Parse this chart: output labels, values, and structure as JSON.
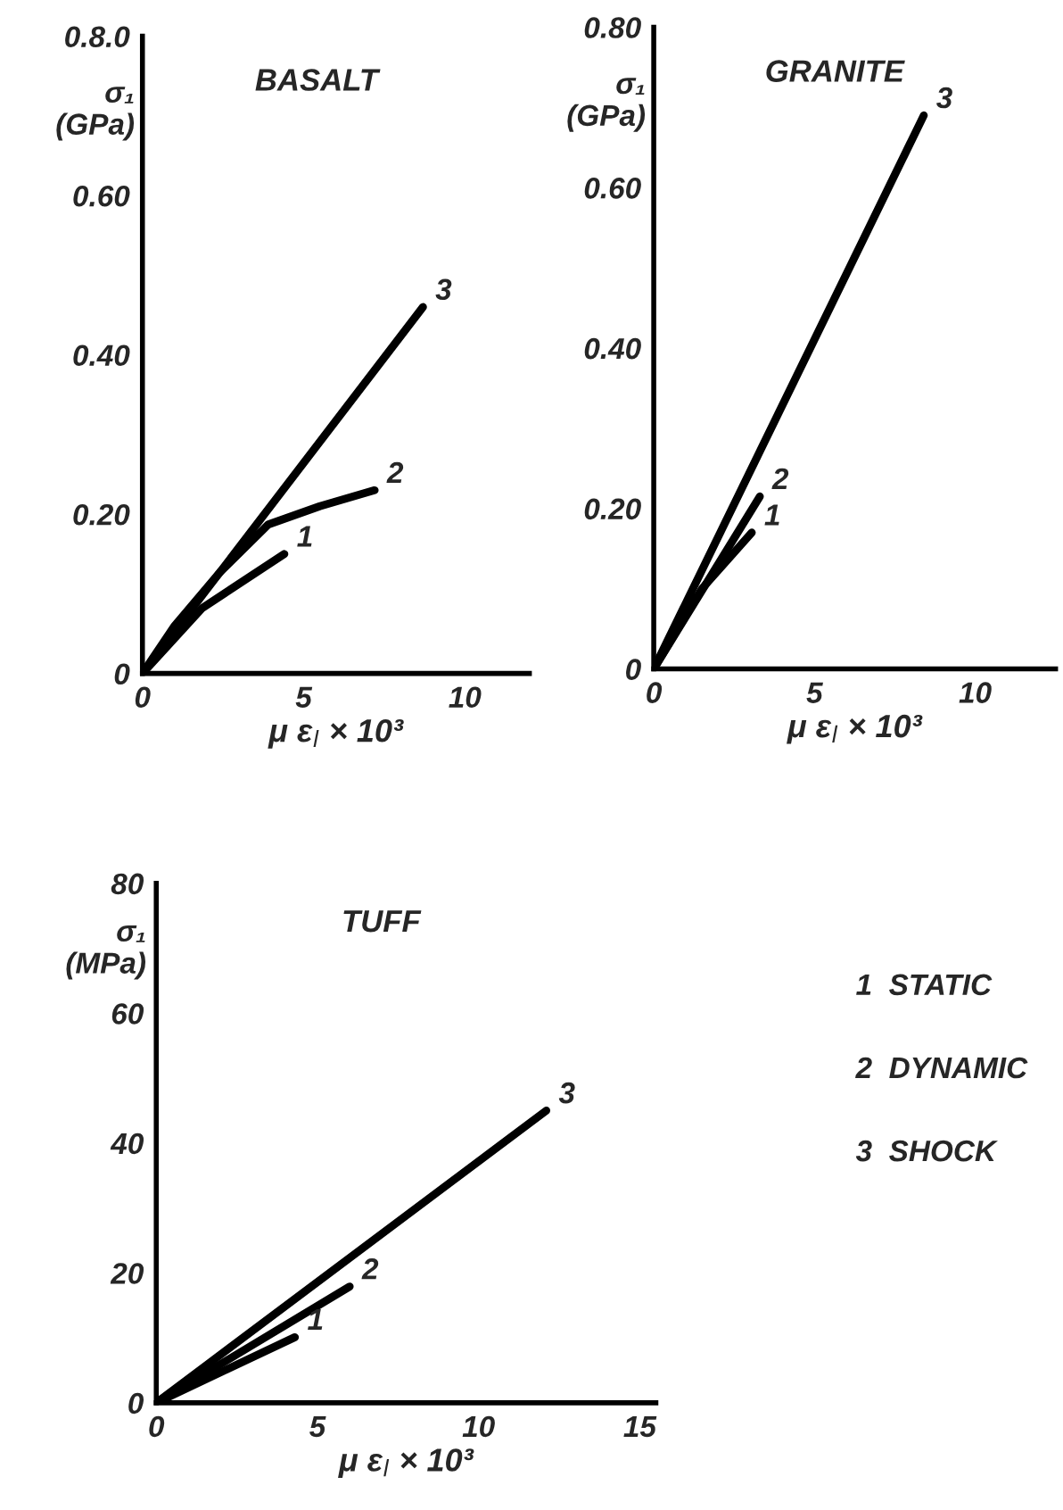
{
  "chart_data": [
    {
      "type": "line",
      "title": "BASALT",
      "xlabel": "μ ε$_{l}$ × 10³",
      "ylabel": "σ₁\n(GPa)",
      "xlim": [
        0,
        12
      ],
      "ylim": [
        0,
        0.8
      ],
      "xticks": [
        0,
        5,
        10
      ],
      "yticks": [
        0,
        {
          "value": 0.2,
          "label": "0.20"
        },
        {
          "value": 0.4,
          "label": "0.40"
        },
        {
          "value": 0.6,
          "label": "0.60"
        },
        {
          "value": 0.8,
          "label": "0.8.0"
        }
      ],
      "grid": false,
      "series": [
        {
          "color": "#000000",
          "x": [
            0,
            1.85,
            4.4
          ],
          "values": [
            0,
            0.082,
            0.15
          ]
        },
        {
          "color": "#000000",
          "x": [
            0,
            1,
            2.4,
            3.9,
            5.5,
            7.2
          ],
          "values": [
            0,
            0.06,
            0.127,
            0.187,
            0.21,
            0.23
          ]
        },
        {
          "color": "#000000",
          "x": [
            0,
            8.7
          ],
          "values": [
            0,
            0.46
          ]
        }
      ],
      "annotations": [
        {
          "text": "1",
          "x": 4.4,
          "y": 0.15
        },
        {
          "text": "2",
          "x": 7.2,
          "y": 0.23
        },
        {
          "text": "3",
          "x": 8.7,
          "y": 0.46
        }
      ]
    },
    {
      "type": "line",
      "title": "GRANITE",
      "xlabel": "μ ε$_{l}$ × 10³",
      "ylabel": "σ₁\n(GPa)",
      "xlim": [
        0,
        12.5
      ],
      "ylim": [
        0,
        0.8
      ],
      "xticks": [
        0,
        5,
        10
      ],
      "yticks": [
        0,
        {
          "value": 0.2,
          "label": "0.20"
        },
        {
          "value": 0.4,
          "label": "0.40"
        },
        {
          "value": 0.6,
          "label": "0.60"
        },
        {
          "value": 0.8,
          "label": "0.80"
        }
      ],
      "grid": false,
      "series": [
        {
          "color": "#000000",
          "x": [
            0,
            1.5,
            3.05
          ],
          "values": [
            0,
            0.1,
            0.17
          ]
        },
        {
          "color": "#000000",
          "x": [
            0,
            3.3
          ],
          "values": [
            0,
            0.215
          ]
        },
        {
          "color": "#000000",
          "x": [
            0,
            8.4
          ],
          "values": [
            0,
            0.69
          ]
        }
      ],
      "annotations": [
        {
          "text": "1",
          "x": 3.05,
          "y": 0.17
        },
        {
          "text": "2",
          "x": 3.3,
          "y": 0.215
        },
        {
          "text": "3",
          "x": 8.4,
          "y": 0.69
        }
      ]
    },
    {
      "type": "line",
      "title": "TUFF",
      "xlabel": "μ ε$_{l}$ × 10³",
      "ylabel": "σ₁\n(MPa)",
      "xlim": [
        0,
        15.5
      ],
      "ylim": [
        0,
        80
      ],
      "xticks": [
        0,
        5,
        10,
        15
      ],
      "yticks": [
        0,
        20,
        40,
        60,
        80
      ],
      "grid": false,
      "series": [
        {
          "color": "#000000",
          "x": [
            0,
            4.3
          ],
          "values": [
            0,
            10.1
          ]
        },
        {
          "color": "#000000",
          "x": [
            0,
            6.0
          ],
          "values": [
            0,
            17.9
          ]
        },
        {
          "color": "#000000",
          "x": [
            0,
            12.1
          ],
          "values": [
            0,
            45
          ]
        }
      ],
      "annotations": [
        {
          "text": "1",
          "x": 4.3,
          "y": 10.1
        },
        {
          "text": "2",
          "x": 6.0,
          "y": 17.9
        },
        {
          "text": "3",
          "x": 12.1,
          "y": 45
        },
        "1  STATIC",
        "2  DYNAMIC",
        "3  SHOCK"
      ]
    }
  ]
}
